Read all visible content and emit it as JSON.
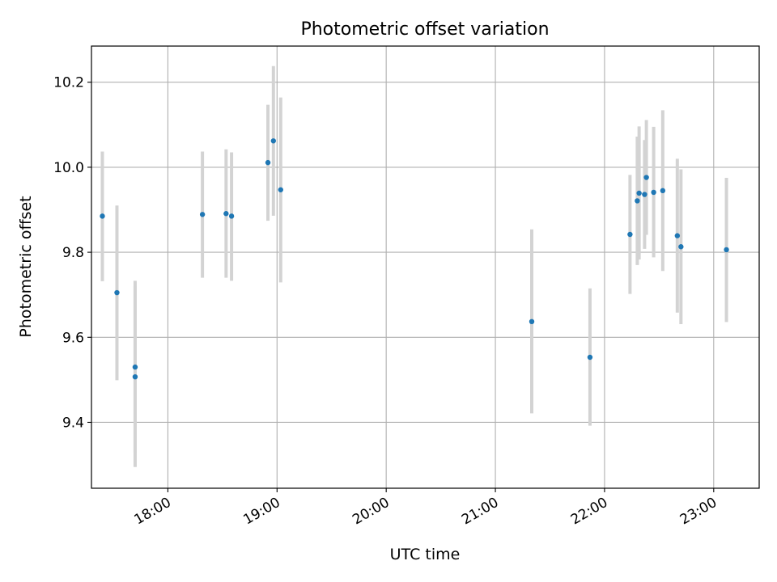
{
  "chart_data": {
    "type": "scatter",
    "title": "Photometric offset variation",
    "xlabel": "UTC time",
    "ylabel": "Photometric offset",
    "grid": true,
    "x_axis": {
      "kind": "time",
      "range": [
        "17:18",
        "23:25"
      ],
      "ticks": [
        "18:00",
        "19:00",
        "20:00",
        "21:00",
        "22:00",
        "23:00"
      ]
    },
    "y_axis": {
      "range": [
        9.245,
        10.285
      ],
      "ticks": [
        9.4,
        9.6,
        9.8,
        10.0,
        10.2
      ],
      "tick_labels": [
        "9.4",
        "9.6",
        "9.8",
        "10.0",
        "10.2"
      ]
    },
    "series": [
      {
        "marker_color": "#1f77b4",
        "errorbar_color": "#d3d3d3",
        "points": [
          {
            "x": "17:24",
            "y": 9.885,
            "ylow": 9.732,
            "yhigh": 10.037
          },
          {
            "x": "17:32",
            "y": 9.705,
            "ylow": 9.499,
            "yhigh": 9.91
          },
          {
            "x": "17:42",
            "y": 9.53,
            "ylow": 9.33,
            "yhigh": 9.733
          },
          {
            "x": "17:42",
            "y": 9.507,
            "ylow": 9.295,
            "yhigh": 9.72
          },
          {
            "x": "18:19",
            "y": 9.889,
            "ylow": 9.74,
            "yhigh": 10.037
          },
          {
            "x": "18:32",
            "y": 9.891,
            "ylow": 9.74,
            "yhigh": 10.042
          },
          {
            "x": "18:35",
            "y": 9.885,
            "ylow": 9.733,
            "yhigh": 10.035
          },
          {
            "x": "18:55",
            "y": 10.011,
            "ylow": 9.874,
            "yhigh": 10.147
          },
          {
            "x": "18:58",
            "y": 10.062,
            "ylow": 9.886,
            "yhigh": 10.238
          },
          {
            "x": "19:02",
            "y": 9.947,
            "ylow": 9.729,
            "yhigh": 10.164
          },
          {
            "x": "21:20",
            "y": 9.637,
            "ylow": 9.421,
            "yhigh": 9.854
          },
          {
            "x": "21:52",
            "y": 9.553,
            "ylow": 9.392,
            "yhigh": 9.715
          },
          {
            "x": "22:14",
            "y": 9.842,
            "ylow": 9.702,
            "yhigh": 9.982
          },
          {
            "x": "22:18",
            "y": 9.921,
            "ylow": 9.77,
            "yhigh": 10.072
          },
          {
            "x": "22:19",
            "y": 9.939,
            "ylow": 9.783,
            "yhigh": 10.096
          },
          {
            "x": "22:22",
            "y": 9.936,
            "ylow": 9.808,
            "yhigh": 10.064
          },
          {
            "x": "22:23",
            "y": 9.976,
            "ylow": 9.841,
            "yhigh": 10.111
          },
          {
            "x": "22:27",
            "y": 9.941,
            "ylow": 9.788,
            "yhigh": 10.095
          },
          {
            "x": "22:32",
            "y": 9.945,
            "ylow": 9.756,
            "yhigh": 10.134
          },
          {
            "x": "22:40",
            "y": 9.839,
            "ylow": 9.658,
            "yhigh": 10.02
          },
          {
            "x": "22:42",
            "y": 9.813,
            "ylow": 9.631,
            "yhigh": 9.995
          },
          {
            "x": "23:07",
            "y": 9.806,
            "ylow": 9.636,
            "yhigh": 9.975
          }
        ]
      }
    ]
  }
}
